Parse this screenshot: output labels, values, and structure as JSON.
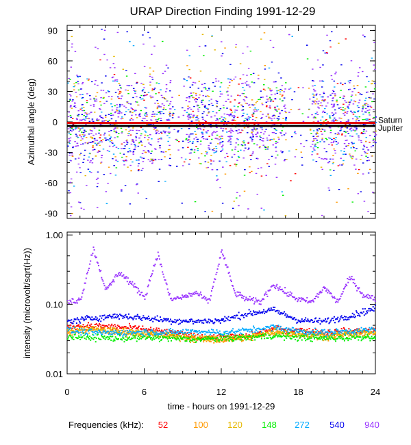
{
  "chart_data": [
    {
      "type": "scatter",
      "panel": "top",
      "title": "URAP Direction Finding  1991-12-29",
      "xlabel": "",
      "ylabel": "Azimuthal angle (deg)",
      "xlim": [
        0,
        24
      ],
      "ylim": [
        -95,
        95
      ],
      "yticks": [
        -90,
        -60,
        -30,
        0,
        30,
        60,
        90
      ],
      "ytick_labels": [
        "-90",
        "-60",
        "-30",
        "0",
        "30",
        "60",
        "90"
      ],
      "reference_lines": [
        {
          "name": "Saturn",
          "y": -1,
          "color": "#e00000"
        },
        {
          "name": "Jupiter",
          "y": -4,
          "color": "#000000"
        }
      ],
      "series_note": "dense scatter of direction measurements at all 7 frequencies, concentrated between -60 and +60 deg, gaps near 8-9 h and 17-19 h"
    },
    {
      "type": "scatter",
      "panel": "bottom",
      "xlabel": "time - hours on 1991-12-29",
      "ylabel": "intensity (microvolt/sqrt(Hz))",
      "xlim": [
        0,
        24
      ],
      "xticks": [
        0,
        6,
        12,
        18,
        24
      ],
      "xtick_labels": [
        "0",
        "6",
        "12",
        "18",
        "24"
      ],
      "yscale": "log",
      "ylim": [
        0.01,
        1.1
      ],
      "yticks": [
        0.01,
        0.1,
        1.0
      ],
      "ytick_labels": [
        "0.01",
        "0.10",
        "1.00"
      ],
      "legend_title": "Frequencies (kHz):",
      "series": [
        {
          "name": "52",
          "color": "#ff0000",
          "times": [
            0,
            2,
            4,
            6,
            8,
            10,
            12,
            14,
            16,
            18,
            20,
            22,
            24
          ],
          "values": [
            0.05,
            0.05,
            0.048,
            0.045,
            0.04,
            0.035,
            0.035,
            0.035,
            0.045,
            0.043,
            0.04,
            0.042,
            0.043
          ]
        },
        {
          "name": "100",
          "color": "#ff9900",
          "times": [
            0,
            2,
            4,
            6,
            8,
            10,
            12,
            14,
            16,
            18,
            20,
            22,
            24
          ],
          "values": [
            0.04,
            0.045,
            0.04,
            0.038,
            0.035,
            0.032,
            0.031,
            0.033,
            0.04,
            0.037,
            0.035,
            0.037,
            0.04
          ]
        },
        {
          "name": "120",
          "color": "#e6b800",
          "times": [
            0,
            2,
            4,
            6,
            8,
            10,
            12,
            14,
            16,
            18,
            20,
            22,
            24
          ],
          "values": [
            0.042,
            0.046,
            0.042,
            0.04,
            0.037,
            0.034,
            0.033,
            0.035,
            0.042,
            0.039,
            0.037,
            0.04,
            0.042
          ]
        },
        {
          "name": "148",
          "color": "#00ee00",
          "times": [
            0,
            2,
            4,
            6,
            8,
            10,
            12,
            14,
            16,
            18,
            20,
            22,
            24
          ],
          "values": [
            0.035,
            0.034,
            0.033,
            0.034,
            0.033,
            0.032,
            0.033,
            0.034,
            0.036,
            0.034,
            0.033,
            0.034,
            0.035
          ]
        },
        {
          "name": "272",
          "color": "#00aaff",
          "times": [
            0,
            2,
            4,
            6,
            8,
            10,
            12,
            14,
            16,
            18,
            20,
            22,
            24
          ],
          "values": [
            0.043,
            0.04,
            0.04,
            0.041,
            0.04,
            0.042,
            0.04,
            0.043,
            0.048,
            0.042,
            0.04,
            0.042,
            0.044
          ]
        },
        {
          "name": "540",
          "color": "#0000ee",
          "times": [
            0,
            2,
            4,
            6,
            8,
            10,
            12,
            14,
            16,
            18,
            20,
            22,
            24
          ],
          "values": [
            0.058,
            0.065,
            0.07,
            0.065,
            0.06,
            0.058,
            0.06,
            0.075,
            0.085,
            0.06,
            0.058,
            0.07,
            0.09
          ]
        },
        {
          "name": "940",
          "color": "#9933ff",
          "times": [
            0,
            1,
            2,
            3,
            4,
            5,
            6,
            7,
            8,
            9,
            10,
            11,
            12,
            13,
            14,
            15,
            16,
            17,
            18,
            19,
            20,
            21,
            22,
            23,
            24
          ],
          "values": [
            0.11,
            0.12,
            0.65,
            0.16,
            0.3,
            0.2,
            0.13,
            0.55,
            0.12,
            0.13,
            0.15,
            0.11,
            0.6,
            0.15,
            0.12,
            0.11,
            0.2,
            0.15,
            0.12,
            0.11,
            0.18,
            0.11,
            0.25,
            0.14,
            0.12
          ]
        }
      ]
    }
  ],
  "colors": {
    "saturn_line": "#e00000",
    "jupiter_line": "#000000"
  }
}
